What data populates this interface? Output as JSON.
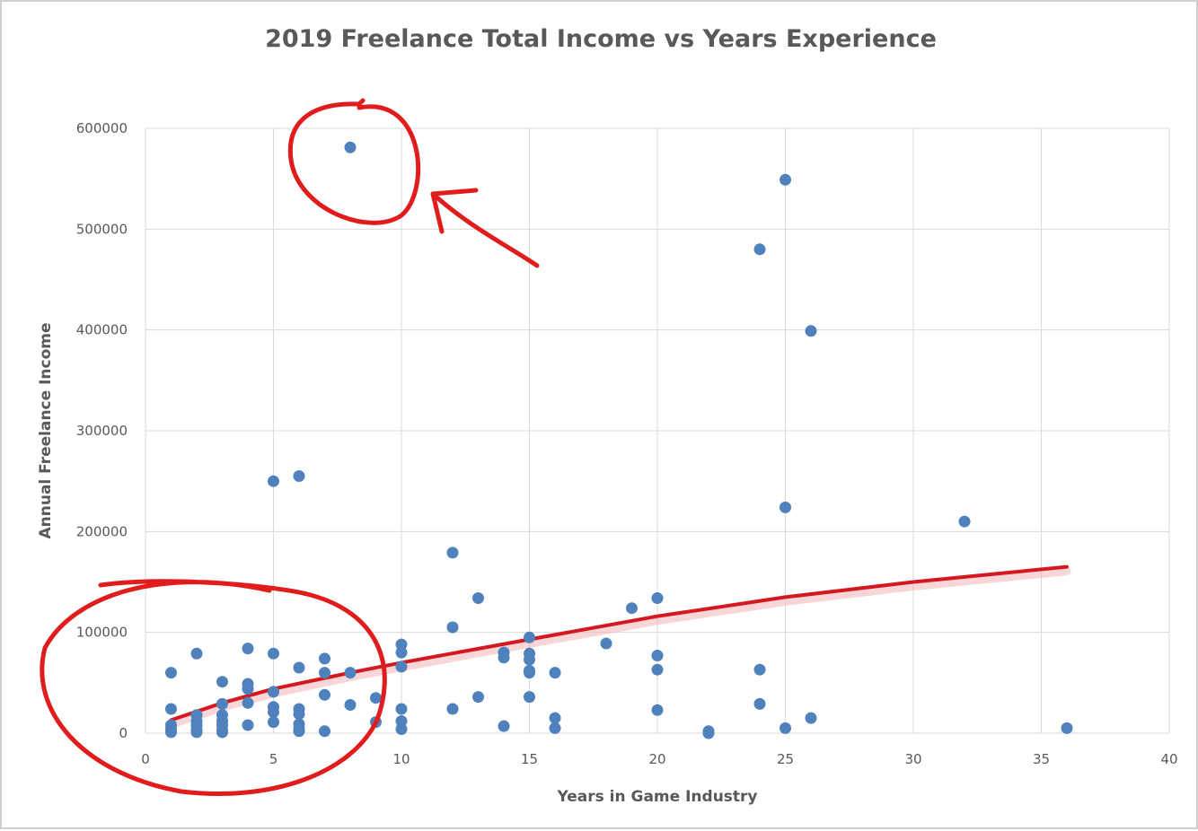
{
  "chart_data": {
    "type": "scatter",
    "title": "2019 Freelance Total Income vs Years Experience",
    "xlabel": "Years in Game Industry",
    "ylabel": "Annual Freelance Income",
    "xlim": [
      0,
      40
    ],
    "ylim": [
      0,
      600000
    ],
    "xticks": [
      0,
      5,
      10,
      15,
      20,
      25,
      30,
      35,
      40
    ],
    "yticks": [
      0,
      100000,
      200000,
      300000,
      400000,
      500000,
      600000
    ],
    "grid": true,
    "legend": "none",
    "colors": {
      "points": "#4f81bd",
      "trendline": "#d4181f",
      "annotation": "#e01c1c",
      "grid": "#d9d9d9"
    },
    "points": [
      [
        1,
        60000
      ],
      [
        1,
        24000
      ],
      [
        1,
        8000
      ],
      [
        1,
        4000
      ],
      [
        1,
        1000
      ],
      [
        2,
        79000
      ],
      [
        2,
        18000
      ],
      [
        2,
        12000
      ],
      [
        2,
        8000
      ],
      [
        2,
        3000
      ],
      [
        2,
        1000
      ],
      [
        3,
        51000
      ],
      [
        3,
        29000
      ],
      [
        3,
        18000
      ],
      [
        3,
        12000
      ],
      [
        3,
        8000
      ],
      [
        3,
        3000
      ],
      [
        3,
        1000
      ],
      [
        4,
        84000
      ],
      [
        4,
        49000
      ],
      [
        4,
        44000
      ],
      [
        4,
        30000
      ],
      [
        4,
        8000
      ],
      [
        5,
        250000
      ],
      [
        5,
        79000
      ],
      [
        5,
        41000
      ],
      [
        5,
        26000
      ],
      [
        5,
        21000
      ],
      [
        5,
        11000
      ],
      [
        6,
        255000
      ],
      [
        6,
        65000
      ],
      [
        6,
        24000
      ],
      [
        6,
        19000
      ],
      [
        6,
        9000
      ],
      [
        6,
        4000
      ],
      [
        6,
        2000
      ],
      [
        7,
        74000
      ],
      [
        7,
        60000
      ],
      [
        7,
        38000
      ],
      [
        7,
        2000
      ],
      [
        8,
        581000
      ],
      [
        8,
        60000
      ],
      [
        8,
        28000
      ],
      [
        9,
        35000
      ],
      [
        9,
        11000
      ],
      [
        10,
        88000
      ],
      [
        10,
        80000
      ],
      [
        10,
        66000
      ],
      [
        10,
        24000
      ],
      [
        10,
        12000
      ],
      [
        10,
        4000
      ],
      [
        12,
        179000
      ],
      [
        12,
        105000
      ],
      [
        12,
        24000
      ],
      [
        13,
        134000
      ],
      [
        13,
        36000
      ],
      [
        14,
        80000
      ],
      [
        14,
        75000
      ],
      [
        14,
        7000
      ],
      [
        15,
        95000
      ],
      [
        15,
        79000
      ],
      [
        15,
        73000
      ],
      [
        15,
        62000
      ],
      [
        15,
        60000
      ],
      [
        15,
        36000
      ],
      [
        16,
        60000
      ],
      [
        16,
        15000
      ],
      [
        16,
        5000
      ],
      [
        18,
        89000
      ],
      [
        19,
        124000
      ],
      [
        20,
        134000
      ],
      [
        20,
        77000
      ],
      [
        20,
        63000
      ],
      [
        20,
        23000
      ],
      [
        22,
        2000
      ],
      [
        22,
        0
      ],
      [
        24,
        480000
      ],
      [
        24,
        63000
      ],
      [
        24,
        29000
      ],
      [
        25,
        549000
      ],
      [
        25,
        224000
      ],
      [
        25,
        5000
      ],
      [
        26,
        399000
      ],
      [
        26,
        15000
      ],
      [
        32,
        210000
      ],
      [
        36,
        5000
      ]
    ],
    "trendline": [
      [
        1,
        13000
      ],
      [
        3,
        30000
      ],
      [
        5,
        44000
      ],
      [
        8,
        60000
      ],
      [
        10,
        70000
      ],
      [
        15,
        93000
      ],
      [
        20,
        116000
      ],
      [
        25,
        135000
      ],
      [
        30,
        150000
      ],
      [
        36,
        165000
      ]
    ],
    "annotations": [
      "circle-top-outlier",
      "arrow-to-outlier",
      "circle-low-cluster"
    ]
  }
}
